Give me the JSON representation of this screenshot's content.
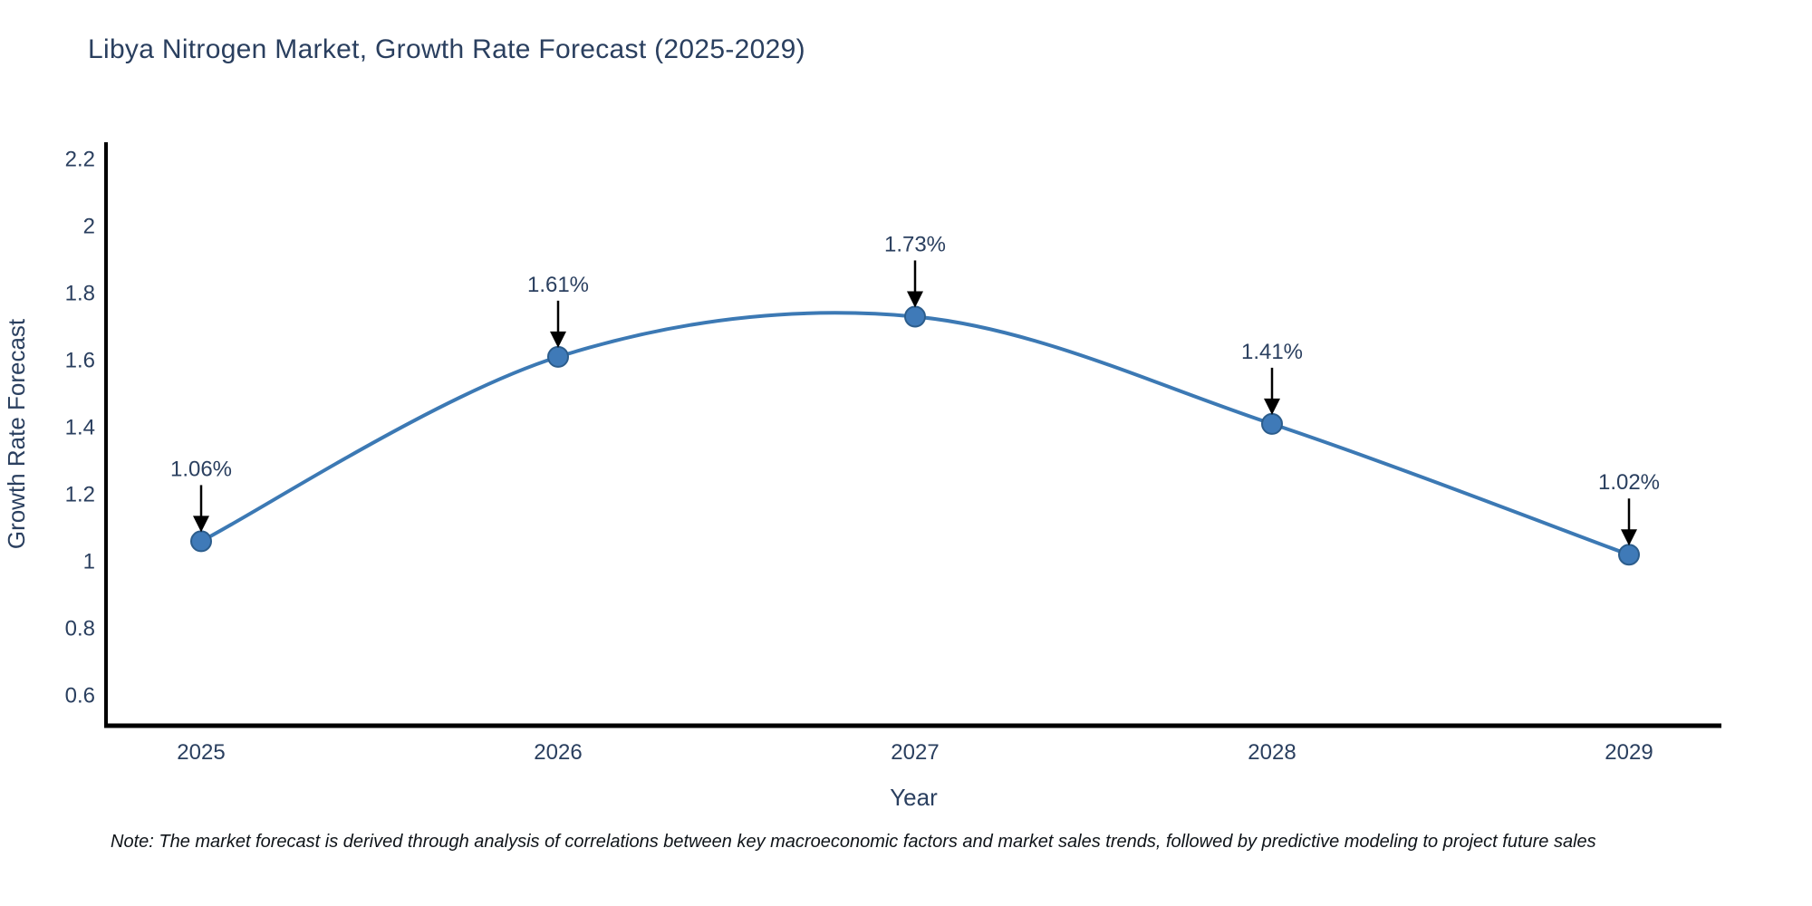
{
  "header": {
    "title": "Libya Nitrogen Market, Growth Rate Forecast (2025-2029)"
  },
  "chart_data": {
    "type": "line",
    "title": "Libya Nitrogen Market, Growth Rate Forecast (2025-2029)",
    "xlabel": "Year",
    "ylabel": "Growth Rate Forecast",
    "x": [
      2025,
      2026,
      2027,
      2028,
      2029
    ],
    "x_tick_labels": [
      "2025",
      "2026",
      "2027",
      "2028",
      "2029"
    ],
    "series": [
      {
        "name": "Growth Rate Forecast",
        "values": [
          1.06,
          1.61,
          1.73,
          1.41,
          1.02
        ]
      }
    ],
    "point_labels": [
      "1.06%",
      "1.61%",
      "1.73%",
      "1.41%",
      "1.02%"
    ],
    "yticks": [
      0.6,
      0.8,
      1,
      1.2,
      1.4,
      1.6,
      1.8,
      2,
      2.2
    ],
    "ytick_labels": [
      "0.6",
      "0.8",
      "1",
      "1.2",
      "1.4",
      "1.6",
      "1.8",
      "2",
      "2.2"
    ],
    "ylim": [
      0.51,
      2.25
    ],
    "grid": false,
    "legend": "none",
    "line_shape": "spline",
    "colors": {
      "line": "#3c79b4",
      "marker_fill": "#3f7ab8",
      "marker_edge": "#2c5d8c",
      "arrow": "#000000",
      "axis": "#000000",
      "text": "#2a3f5f"
    }
  },
  "footer": {
    "note": "Note: The market forecast is derived through analysis of correlations between key macroeconomic factors and market sales trends, followed by predictive modeling to project future sales"
  }
}
